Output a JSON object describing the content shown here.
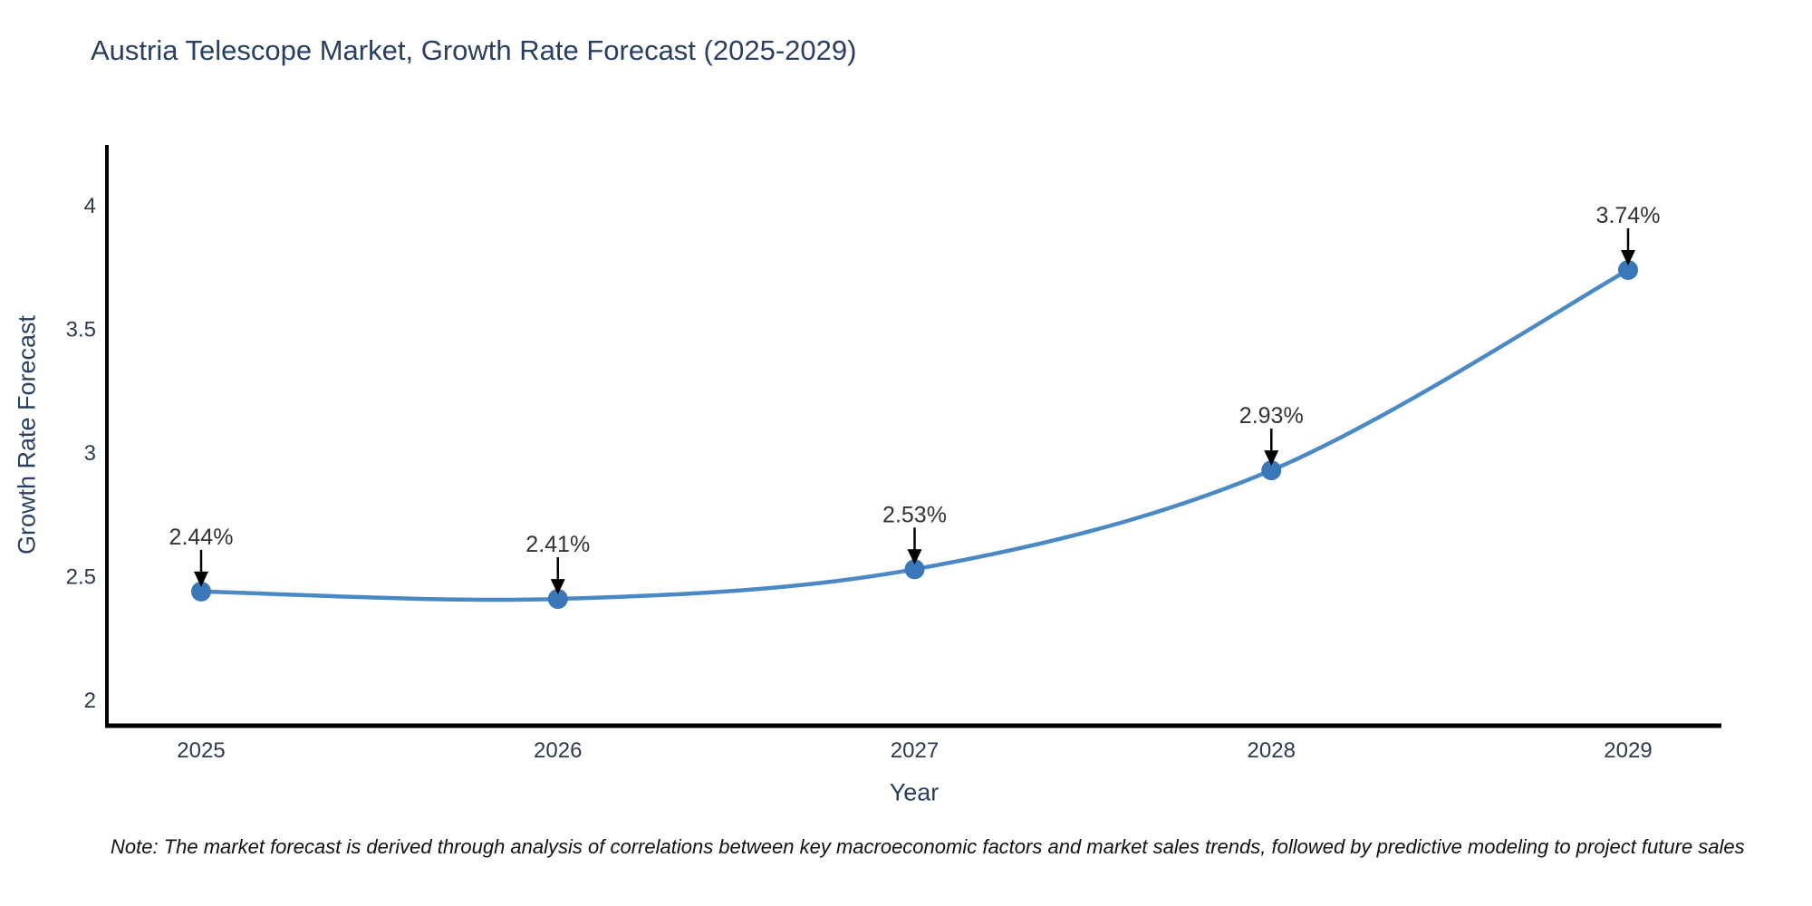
{
  "header": {
    "title": "Austria Telescope Market, Growth Rate Forecast (2025-2029)"
  },
  "chart_data": {
    "type": "line",
    "title": "Austria Telescope Market, Growth Rate Forecast (2025-2029)",
    "x": [
      2025,
      2026,
      2027,
      2028,
      2029
    ],
    "x_tick_labels": [
      "2025",
      "2026",
      "2027",
      "2028",
      "2029"
    ],
    "series": [
      {
        "name": "Growth Rate Forecast",
        "values": [
          2.44,
          2.41,
          2.53,
          2.93,
          3.74
        ]
      }
    ],
    "point_labels": [
      "2.44%",
      "2.41%",
      "2.53%",
      "2.93%",
      "3.74%"
    ],
    "xlabel": "Year",
    "ylabel": "Growth Rate Forecast",
    "ytick_values": [
      2,
      2.5,
      3,
      3.5,
      4
    ],
    "ytick_labels": [
      "2",
      "2.5",
      "3",
      "3.5",
      "4"
    ],
    "ylim": [
      1.9,
      4.35
    ],
    "grid": false,
    "legend_position": "none",
    "smooth": true,
    "line_color": "#4a89c4",
    "marker_color": "#3a77b8",
    "axis_color": "#000000",
    "annotation_arrow_color": "#000000"
  },
  "note": {
    "text": "Note: The market forecast is derived through analysis of correlations between key macroeconomic factors and market sales trends, followed by predictive modeling to project future sales"
  }
}
